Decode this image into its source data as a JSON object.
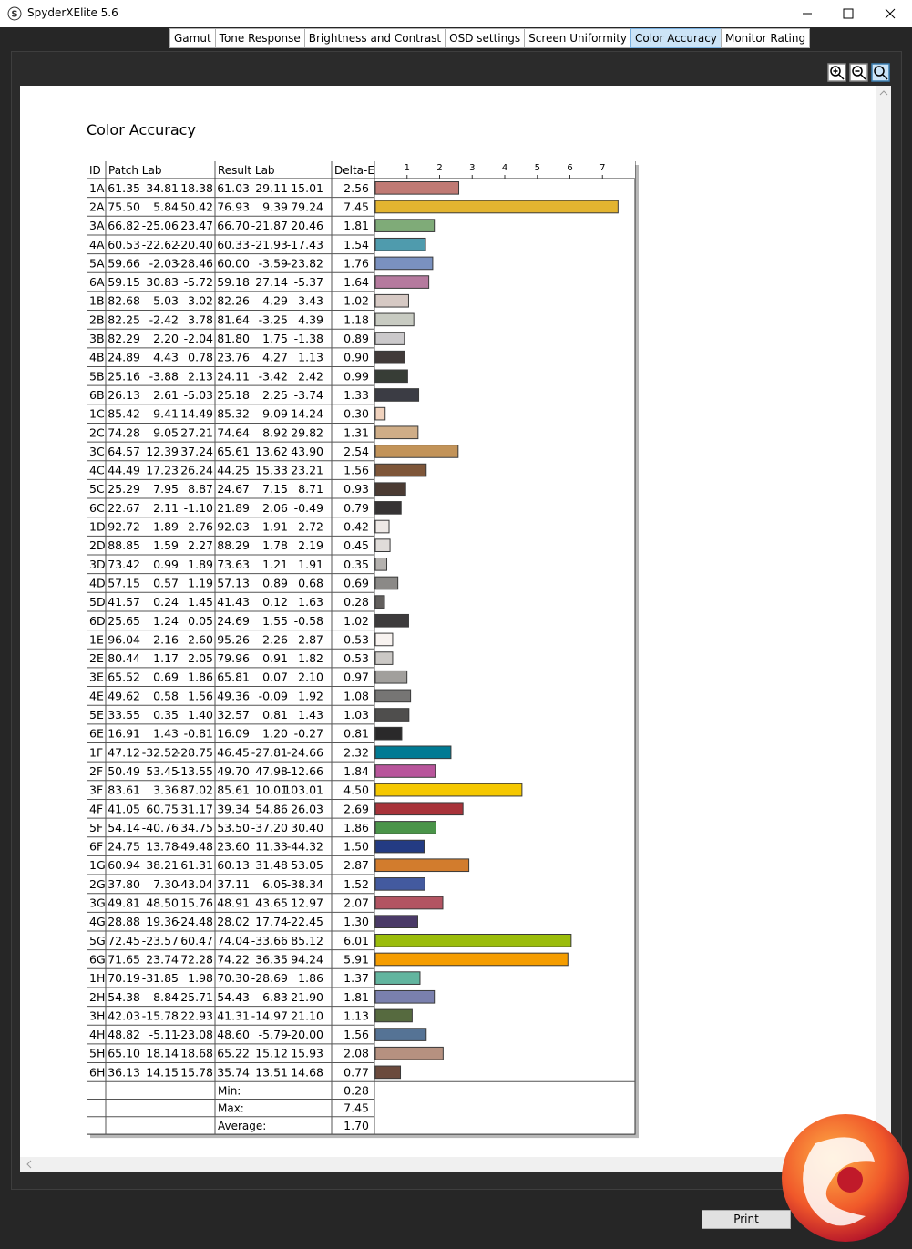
{
  "window": {
    "app_icon": "S",
    "title": "SpyderXElite 5.6"
  },
  "tabs": [
    "Gamut",
    "Tone Response",
    "Brightness and Contrast",
    "OSD settings",
    "Screen Uniformity",
    "Color Accuracy",
    "Monitor Rating"
  ],
  "active_tab": 5,
  "heading": "Color Accuracy",
  "table": {
    "columns": [
      "ID",
      "Patch Lab",
      "Result Lab",
      "Delta-E"
    ],
    "axis": {
      "xlim": [
        0,
        8
      ],
      "ticks": [
        1,
        2,
        3,
        4,
        5,
        6,
        7
      ]
    },
    "rows": [
      [
        "1A",
        "61.35",
        "34.81",
        "18.38",
        "61.03",
        "29.11",
        "15.01",
        "2.56",
        "#c07a74"
      ],
      [
        "2A",
        "75.50",
        "5.84",
        "50.42",
        "76.93",
        "9.39",
        "79.24",
        "7.45",
        "#e3b430"
      ],
      [
        "3A",
        "66.82",
        "-25.06",
        "23.47",
        "66.70",
        "-21.87",
        "20.46",
        "1.81",
        "#7fab78"
      ],
      [
        "4A",
        "60.53",
        "-22.62",
        "-20.40",
        "60.33",
        "-21.93",
        "-17.43",
        "1.54",
        "#4f9bad"
      ],
      [
        "5A",
        "59.66",
        "-2.03",
        "-28.46",
        "60.00",
        "-3.59",
        "-23.82",
        "1.76",
        "#7a91c0"
      ],
      [
        "6A",
        "59.15",
        "30.83",
        "-5.72",
        "59.18",
        "27.14",
        "-5.37",
        "1.64",
        "#b57a9e"
      ],
      [
        "1B",
        "82.68",
        "5.03",
        "3.02",
        "82.26",
        "4.29",
        "3.43",
        "1.02",
        "#d6c9c4"
      ],
      [
        "2B",
        "82.25",
        "-2.42",
        "3.78",
        "81.64",
        "-3.25",
        "4.39",
        "1.18",
        "#c8cbc2"
      ],
      [
        "3B",
        "82.29",
        "2.20",
        "-2.04",
        "81.80",
        "1.75",
        "-1.38",
        "0.89",
        "#cbc9cb"
      ],
      [
        "4B",
        "24.89",
        "4.43",
        "0.78",
        "23.76",
        "4.27",
        "1.13",
        "0.90",
        "#413a39"
      ],
      [
        "5B",
        "25.16",
        "-3.88",
        "2.13",
        "24.11",
        "-3.42",
        "2.42",
        "0.99",
        "#373d36"
      ],
      [
        "6B",
        "26.13",
        "2.61",
        "-5.03",
        "25.18",
        "2.25",
        "-3.74",
        "1.33",
        "#3b3c44"
      ],
      [
        "1C",
        "85.42",
        "9.41",
        "14.49",
        "85.32",
        "9.09",
        "14.24",
        "0.30",
        "#f0d2bd"
      ],
      [
        "2C",
        "74.28",
        "9.05",
        "27.21",
        "74.64",
        "8.92",
        "29.82",
        "1.31",
        "#cfad87"
      ],
      [
        "3C",
        "64.57",
        "12.39",
        "37.24",
        "65.61",
        "13.62",
        "43.90",
        "2.54",
        "#c29359"
      ],
      [
        "4C",
        "44.49",
        "17.23",
        "26.24",
        "44.25",
        "15.33",
        "23.21",
        "1.56",
        "#7e5639"
      ],
      [
        "5C",
        "25.29",
        "7.95",
        "8.87",
        "24.67",
        "7.15",
        "8.71",
        "0.93",
        "#4b3b33"
      ],
      [
        "6C",
        "22.67",
        "2.11",
        "-1.10",
        "21.89",
        "2.06",
        "-0.49",
        "0.79",
        "#363334"
      ],
      [
        "1D",
        "92.72",
        "1.89",
        "2.76",
        "92.03",
        "1.91",
        "2.72",
        "0.42",
        "#eee9e6"
      ],
      [
        "2D",
        "88.85",
        "1.59",
        "2.27",
        "88.29",
        "1.78",
        "2.19",
        "0.45",
        "#e0dcd9"
      ],
      [
        "3D",
        "73.42",
        "0.99",
        "1.89",
        "73.63",
        "1.21",
        "1.91",
        "0.35",
        "#b4b1ae"
      ],
      [
        "4D",
        "57.15",
        "0.57",
        "1.19",
        "57.13",
        "0.89",
        "0.68",
        "0.69",
        "#8b8987"
      ],
      [
        "5D",
        "41.57",
        "0.24",
        "1.45",
        "41.43",
        "0.12",
        "1.63",
        "0.28",
        "#625f5d"
      ],
      [
        "6D",
        "25.65",
        "1.24",
        "0.05",
        "24.69",
        "1.55",
        "-0.58",
        "1.02",
        "#3d3b3c"
      ],
      [
        "1E",
        "96.04",
        "2.16",
        "2.60",
        "95.26",
        "2.26",
        "2.87",
        "0.53",
        "#f8f3f0"
      ],
      [
        "2E",
        "80.44",
        "1.17",
        "2.05",
        "79.96",
        "0.91",
        "1.82",
        "0.53",
        "#cbc8c5"
      ],
      [
        "3E",
        "65.52",
        "0.69",
        "1.86",
        "65.81",
        "0.07",
        "2.10",
        "0.97",
        "#a19f9c"
      ],
      [
        "4E",
        "49.62",
        "0.58",
        "1.56",
        "49.36",
        "-0.09",
        "1.92",
        "1.08",
        "#767574"
      ],
      [
        "5E",
        "33.55",
        "0.35",
        "1.40",
        "32.57",
        "0.81",
        "1.43",
        "1.03",
        "#4f4e4d"
      ],
      [
        "6E",
        "16.91",
        "1.43",
        "-0.81",
        "16.09",
        "1.20",
        "-0.27",
        "0.81",
        "#2a292a"
      ],
      [
        "1F",
        "47.12",
        "-32.52",
        "-28.75",
        "46.45",
        "-27.81",
        "-24.66",
        "2.32",
        "#007a93"
      ],
      [
        "2F",
        "50.49",
        "53.45",
        "-13.55",
        "49.70",
        "47.98",
        "-12.66",
        "1.84",
        "#b8559b"
      ],
      [
        "3F",
        "83.61",
        "3.36",
        "87.02",
        "85.61",
        "10.01",
        "103.01",
        "4.50",
        "#f5c800"
      ],
      [
        "4F",
        "41.05",
        "60.75",
        "31.17",
        "39.34",
        "54.86",
        "26.03",
        "2.69",
        "#a8333a"
      ],
      [
        "5F",
        "54.14",
        "-40.76",
        "34.75",
        "53.50",
        "-37.20",
        "30.40",
        "1.86",
        "#4a9449"
      ],
      [
        "6F",
        "24.75",
        "13.78",
        "-49.48",
        "23.60",
        "11.33",
        "-44.32",
        "1.50",
        "#233b83"
      ],
      [
        "1G",
        "60.94",
        "38.21",
        "61.31",
        "60.13",
        "31.48",
        "53.05",
        "2.87",
        "#d27c2d"
      ],
      [
        "2G",
        "37.80",
        "7.30",
        "-43.04",
        "37.11",
        "6.05",
        "-38.34",
        "1.52",
        "#435a9f"
      ],
      [
        "3G",
        "49.81",
        "48.50",
        "15.76",
        "48.91",
        "43.65",
        "12.97",
        "2.07",
        "#b35462"
      ],
      [
        "4G",
        "28.88",
        "19.36",
        "-24.48",
        "28.02",
        "17.74",
        "-22.45",
        "1.30",
        "#4a3a67"
      ],
      [
        "5G",
        "72.45",
        "-23.57",
        "60.47",
        "74.04",
        "-33.66",
        "85.12",
        "6.01",
        "#9bbd0b"
      ],
      [
        "6G",
        "71.65",
        "23.74",
        "72.28",
        "74.22",
        "36.35",
        "94.24",
        "5.91",
        "#f59d00"
      ],
      [
        "1H",
        "70.19",
        "-31.85",
        "1.98",
        "70.30",
        "-28.69",
        "1.86",
        "1.37",
        "#62b59f"
      ],
      [
        "2H",
        "54.38",
        "8.84",
        "-25.71",
        "54.43",
        "6.83",
        "-21.90",
        "1.81",
        "#7a80ae"
      ],
      [
        "3H",
        "42.03",
        "-15.78",
        "22.93",
        "41.31",
        "-14.97",
        "21.10",
        "1.13",
        "#566a3f"
      ],
      [
        "4H",
        "48.82",
        "-5.11",
        "-23.08",
        "48.60",
        "-5.79",
        "-20.00",
        "1.56",
        "#557395"
      ],
      [
        "5H",
        "65.10",
        "18.14",
        "18.68",
        "65.22",
        "15.12",
        "15.93",
        "2.08",
        "#b69180"
      ],
      [
        "6H",
        "36.13",
        "14.15",
        "15.78",
        "35.74",
        "13.51",
        "14.68",
        "0.77",
        "#6b4a3d"
      ]
    ],
    "summary": [
      [
        "Min:",
        "0.28"
      ],
      [
        "Max:",
        "7.45"
      ],
      [
        "Average:",
        "1.70"
      ]
    ]
  },
  "print_button": "Print"
}
